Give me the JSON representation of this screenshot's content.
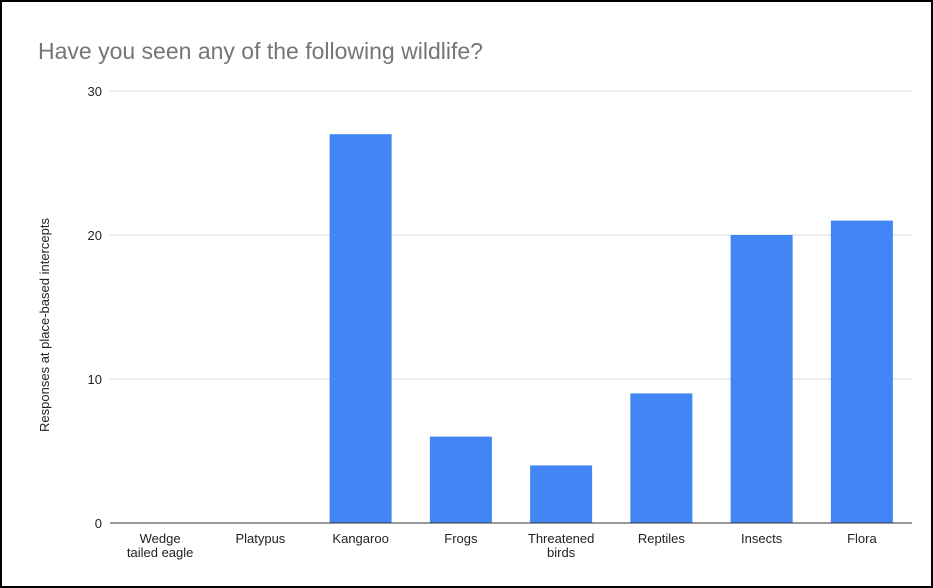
{
  "chart_data": {
    "type": "bar",
    "title": "Have you seen any of the following wildlife?",
    "xlabel": "",
    "ylabel": "Responses at place-based intercepts",
    "categories": [
      "Wedge tailed eagle",
      "Platypus",
      "Kangaroo",
      "Frogs",
      "Threatened birds",
      "Reptiles",
      "Insects",
      "Flora"
    ],
    "category_lines": [
      [
        "Wedge",
        "tailed eagle"
      ],
      [
        "Platypus"
      ],
      [
        "Kangaroo"
      ],
      [
        "Frogs"
      ],
      [
        "Threatened",
        "birds"
      ],
      [
        "Reptiles"
      ],
      [
        "Insects"
      ],
      [
        "Flora"
      ]
    ],
    "values": [
      0,
      0,
      27,
      6,
      4,
      9,
      20,
      21
    ],
    "ylim": [
      0,
      30
    ],
    "yticks": [
      0,
      10,
      20,
      30
    ],
    "grid": true,
    "legend": "none",
    "colors": {
      "bar": "#4285f4",
      "grid": "#d9d9d9",
      "axis": "#333333",
      "title": "#757575"
    }
  }
}
